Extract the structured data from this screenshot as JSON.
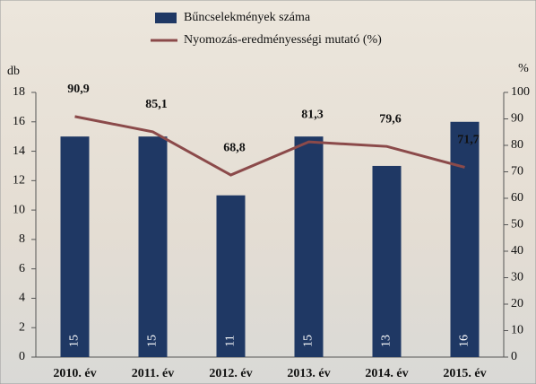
{
  "chart_data": {
    "type": "bar",
    "categories": [
      "2010. év",
      "2011. év",
      "2012. év",
      "2013. év",
      "2014. év",
      "2015. év"
    ],
    "series": [
      {
        "name": "Bűncselekmények száma",
        "type": "bar",
        "color": "#1f3864",
        "values": [
          15,
          15,
          11,
          15,
          13,
          16
        ]
      },
      {
        "name": "Nyomozás-eredményességi mutató (%)",
        "type": "line",
        "axis": "y2",
        "color": "#8b4a4a",
        "values": [
          90.9,
          85.1,
          68.8,
          81.3,
          79.6,
          71.7
        ],
        "value_labels": [
          "90,9",
          "85,1",
          "68,8",
          "81,3",
          "79,6",
          "71,7"
        ]
      }
    ],
    "y_label": "db",
    "y2_label": "%",
    "ylim": [
      0,
      18
    ],
    "yticks": [
      0,
      2,
      4,
      6,
      8,
      10,
      12,
      14,
      16,
      18
    ],
    "y2lim": [
      0,
      100
    ],
    "y2ticks": [
      0,
      10,
      20,
      30,
      40,
      50,
      60,
      70,
      80,
      90,
      100
    ],
    "legend": "top"
  }
}
